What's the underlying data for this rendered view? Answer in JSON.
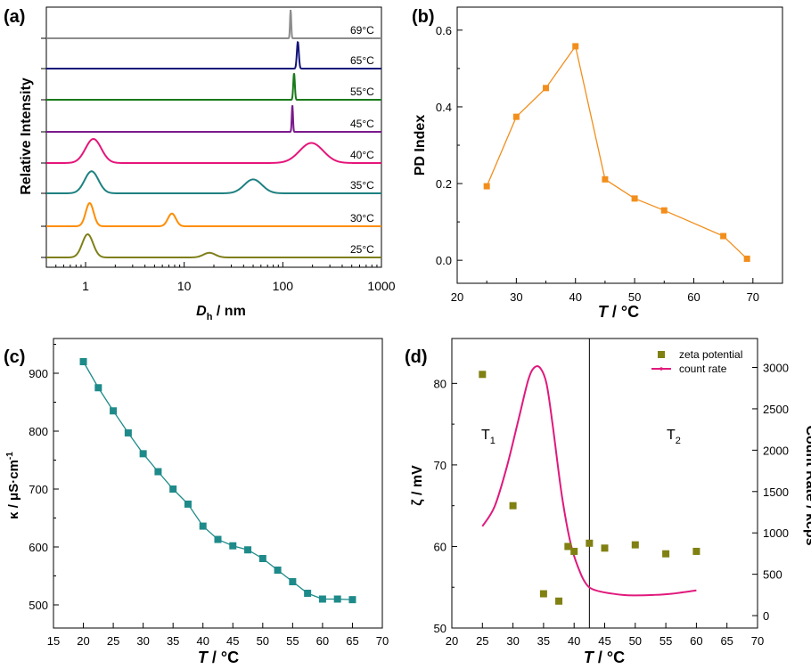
{
  "chart_data": [
    {
      "panel": "a",
      "panel_label": "(a)",
      "type": "line",
      "xscale": "log",
      "xlabel_italic": "D",
      "xlabel_sub": "h",
      "xlabel_rest": " / nm",
      "ylabel": "Relative Intensity",
      "xlim": [
        0.4,
        1000
      ],
      "x_ticks": [
        1,
        10,
        100,
        1000
      ],
      "x_tick_labels": [
        "1",
        "10",
        "100",
        "1000"
      ],
      "series": [
        {
          "name": "25°C",
          "color": "#7f7f1a",
          "peaks": [
            {
              "center": 1.05,
              "width": 0.055,
              "height": 1.0
            },
            {
              "center": 18,
              "width": 0.06,
              "height": 0.2
            }
          ]
        },
        {
          "name": "30°C",
          "color": "#ff8c00",
          "peaks": [
            {
              "center": 1.1,
              "width": 0.04,
              "height": 1.0
            },
            {
              "center": 7.5,
              "width": 0.04,
              "height": 0.55
            }
          ]
        },
        {
          "name": "35°C",
          "color": "#1e8080",
          "peaks": [
            {
              "center": 1.15,
              "width": 0.07,
              "height": 0.95
            },
            {
              "center": 50,
              "width": 0.09,
              "height": 0.6
            }
          ]
        },
        {
          "name": "40°C",
          "color": "#e5157a",
          "peaks": [
            {
              "center": 1.2,
              "width": 0.08,
              "height": 0.9
            },
            {
              "center": 195,
              "width": 0.12,
              "height": 0.75
            }
          ]
        },
        {
          "name": "45°C",
          "color": "#7a1a8c",
          "peaks": [
            {
              "center": 125,
              "width": 0.006,
              "height": 1.0
            }
          ]
        },
        {
          "name": "55°C",
          "color": "#1a7a1a",
          "peaks": [
            {
              "center": 130,
              "width": 0.008,
              "height": 1.0
            }
          ]
        },
        {
          "name": "65°C",
          "color": "#14147a",
          "peaks": [
            {
              "center": 142,
              "width": 0.01,
              "height": 1.0
            }
          ]
        },
        {
          "name": "69°C",
          "color": "#8c8c8c",
          "peaks": [
            {
              "center": 120,
              "width": 0.006,
              "height": 1.0
            }
          ]
        }
      ]
    },
    {
      "panel": "b",
      "panel_label": "(b)",
      "type": "line",
      "xlabel": "T",
      "xlabel_unit": " / °C",
      "ylabel": "PD Index",
      "xlim": [
        20,
        75
      ],
      "ylim": [
        -0.06,
        0.66
      ],
      "x_ticks": [
        20,
        30,
        40,
        50,
        60,
        70
      ],
      "y_ticks": [
        0.0,
        0.2,
        0.4,
        0.6
      ],
      "y_tick_labels": [
        "0.0",
        "0.2",
        "0.4",
        "0.6"
      ],
      "color": "#f28e1c",
      "x": [
        25,
        30,
        35,
        40,
        45,
        50,
        55,
        65,
        69
      ],
      "y": [
        0.193,
        0.374,
        0.449,
        0.558,
        0.211,
        0.161,
        0.13,
        0.063,
        0.004
      ]
    },
    {
      "panel": "c",
      "panel_label": "(c)",
      "type": "line",
      "xlabel": "T",
      "xlabel_unit": " / °C",
      "ylabel": "κ / μS·cm",
      "ylabel_sup": "-1",
      "xlim": [
        15,
        70
      ],
      "ylim": [
        460,
        960
      ],
      "x_ticks": [
        15,
        20,
        25,
        30,
        35,
        40,
        45,
        50,
        55,
        60,
        65,
        70
      ],
      "y_ticks": [
        500,
        600,
        700,
        800,
        900
      ],
      "color": "#1f8a8a",
      "x": [
        20,
        22.5,
        25,
        27.5,
        30,
        32.5,
        35,
        37.5,
        40,
        42.5,
        45,
        47.5,
        50,
        52.5,
        55,
        57.5,
        60,
        62.5,
        65
      ],
      "y": [
        920,
        875,
        835,
        797,
        761,
        730,
        700,
        674,
        636,
        613,
        602,
        595,
        580,
        560,
        540,
        520,
        510,
        510,
        509
      ]
    },
    {
      "panel": "d",
      "panel_label": "(d)",
      "type": "scatter",
      "xlabel": "T",
      "xlabel_unit": " / °C",
      "ylabel": "ζ / mV",
      "ylabel_right": "Count Rate / kcps",
      "xlim": [
        20,
        70
      ],
      "ylim": [
        50,
        85.5
      ],
      "ylim_right": [
        -150,
        3350
      ],
      "x_ticks": [
        20,
        25,
        30,
        35,
        40,
        45,
        50,
        55,
        60,
        65,
        70
      ],
      "y_ticks": [
        50,
        60,
        70,
        80
      ],
      "y_ticks_right": [
        0,
        500,
        1000,
        1500,
        2000,
        2500,
        3000
      ],
      "vline_x": 42.5,
      "region_labels": [
        {
          "text": "T",
          "sub": "1"
        },
        {
          "text": "T",
          "sub": "2"
        }
      ],
      "series": [
        {
          "name": "zeta potential",
          "color": "#808013",
          "x": [
            25,
            30,
            35,
            37.5,
            39,
            40,
            42.5,
            45,
            50,
            55,
            60
          ],
          "y": [
            81.1,
            65.0,
            54.2,
            53.3,
            60.0,
            59.4,
            60.4,
            59.8,
            60.2,
            59.1,
            59.4
          ]
        },
        {
          "name": "count rate",
          "color": "#e0197c",
          "x": [
            25,
            27,
            29,
            31,
            32.5,
            33.5,
            34.5,
            35.5,
            36.5,
            38,
            39.5,
            41,
            42,
            43,
            45,
            48,
            50,
            53,
            56,
            60
          ],
          "y": [
            1080,
            1320,
            1800,
            2400,
            2850,
            3000,
            2990,
            2800,
            2300,
            1450,
            850,
            520,
            380,
            320,
            280,
            250,
            245,
            250,
            265,
            305
          ]
        }
      ]
    }
  ]
}
